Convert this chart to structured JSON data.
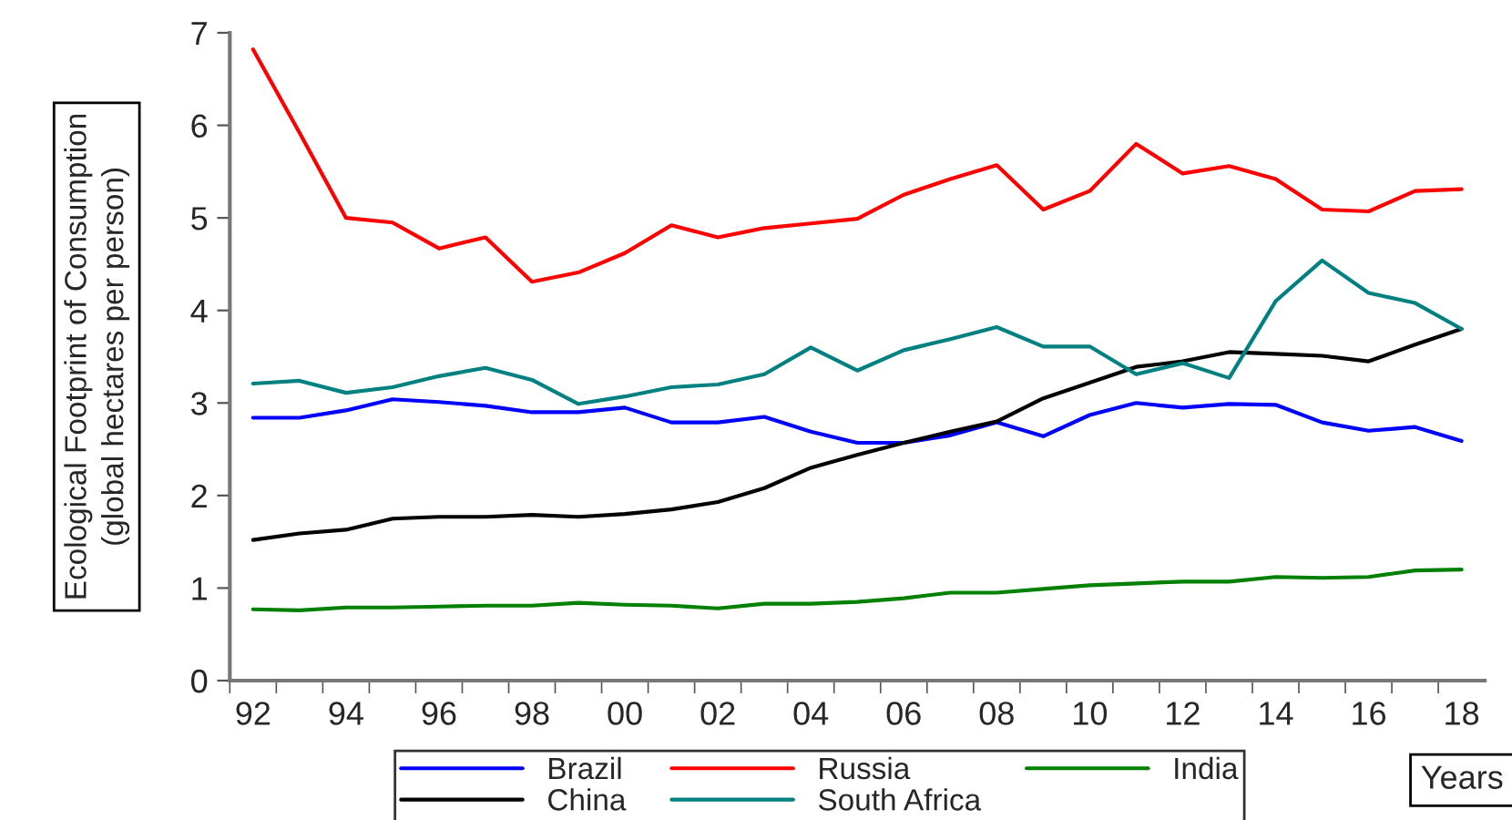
{
  "chart_data": {
    "type": "line",
    "ylabel": "Ecological Footprint of Consumption\n(global hectares per person)",
    "xlabel": "Years",
    "x": [
      1992,
      1993,
      1994,
      1995,
      1996,
      1997,
      1998,
      1999,
      2000,
      2001,
      2002,
      2003,
      2004,
      2005,
      2006,
      2007,
      2008,
      2009,
      2010,
      2011,
      2012,
      2013,
      2014,
      2015,
      2016,
      2017,
      2018
    ],
    "series": [
      {
        "name": "Brazil",
        "color": "#0000ff",
        "values": [
          2.84,
          2.84,
          2.92,
          3.04,
          3.01,
          2.97,
          2.9,
          2.9,
          2.95,
          2.79,
          2.79,
          2.85,
          2.69,
          2.57,
          2.57,
          2.65,
          2.79,
          2.64,
          2.87,
          3.0,
          2.95,
          2.99,
          2.98,
          2.79,
          2.7,
          2.74,
          2.59
        ]
      },
      {
        "name": "Russia",
        "color": "#ff0000",
        "values": [
          6.82,
          5.92,
          5.0,
          4.95,
          4.67,
          4.79,
          4.31,
          4.41,
          4.62,
          4.92,
          4.79,
          4.89,
          4.94,
          4.99,
          5.25,
          5.42,
          5.57,
          5.09,
          5.29,
          5.8,
          5.48,
          5.56,
          5.42,
          5.09,
          5.07,
          5.29,
          5.31
        ]
      },
      {
        "name": "India",
        "color": "#008000",
        "values": [
          0.77,
          0.76,
          0.79,
          0.79,
          0.8,
          0.81,
          0.81,
          0.84,
          0.82,
          0.81,
          0.78,
          0.83,
          0.83,
          0.85,
          0.89,
          0.95,
          0.95,
          0.99,
          1.03,
          1.05,
          1.07,
          1.07,
          1.12,
          1.11,
          1.12,
          1.19,
          1.2
        ]
      },
      {
        "name": "China",
        "color": "#000000",
        "values": [
          1.52,
          1.59,
          1.63,
          1.75,
          1.77,
          1.77,
          1.79,
          1.77,
          1.8,
          1.85,
          1.93,
          2.08,
          2.3,
          2.44,
          2.57,
          2.69,
          2.8,
          3.05,
          3.22,
          3.39,
          3.45,
          3.55,
          3.53,
          3.51,
          3.45,
          3.63,
          3.8
        ]
      },
      {
        "name": "South Africa",
        "color": "#008080",
        "values": [
          3.21,
          3.24,
          3.11,
          3.17,
          3.29,
          3.38,
          3.25,
          2.99,
          3.07,
          3.17,
          3.2,
          3.31,
          3.6,
          3.35,
          3.57,
          3.69,
          3.82,
          3.61,
          3.61,
          3.31,
          3.43,
          3.27,
          4.1,
          4.54,
          4.19,
          4.08,
          3.8
        ]
      }
    ],
    "xlim": [
      1991.5,
      2018.5
    ],
    "xticks": [
      {
        "value": 1992,
        "label": "92"
      },
      {
        "value": 1994,
        "label": "94"
      },
      {
        "value": 1996,
        "label": "96"
      },
      {
        "value": 1998,
        "label": "98"
      },
      {
        "value": 2000,
        "label": "00"
      },
      {
        "value": 2002,
        "label": "02"
      },
      {
        "value": 2004,
        "label": "04"
      },
      {
        "value": 2006,
        "label": "06"
      },
      {
        "value": 2008,
        "label": "08"
      },
      {
        "value": 2010,
        "label": "10"
      },
      {
        "value": 2012,
        "label": "12"
      },
      {
        "value": 2014,
        "label": "14"
      },
      {
        "value": 2016,
        "label": "16"
      },
      {
        "value": 2018,
        "label": "18"
      },
      {
        "value": 1991.5,
        "label": null
      },
      {
        "value": 1992.5,
        "label": null
      },
      {
        "value": 1993.5,
        "label": null
      },
      {
        "value": 1994.5,
        "label": null
      },
      {
        "value": 1995.5,
        "label": null
      },
      {
        "value": 1996.5,
        "label": null
      },
      {
        "value": 1997.5,
        "label": null
      },
      {
        "value": 1998.5,
        "label": null
      },
      {
        "value": 1999.5,
        "label": null
      },
      {
        "value": 2000.5,
        "label": null
      },
      {
        "value": 2001.5,
        "label": null
      },
      {
        "value": 2002.5,
        "label": null
      },
      {
        "value": 2003.5,
        "label": null
      },
      {
        "value": 2004.5,
        "label": null
      },
      {
        "value": 2005.5,
        "label": null
      },
      {
        "value": 2006.5,
        "label": null
      },
      {
        "value": 2007.5,
        "label": null
      },
      {
        "value": 2008.5,
        "label": null
      },
      {
        "value": 2009.5,
        "label": null
      },
      {
        "value": 2010.5,
        "label": null
      },
      {
        "value": 2011.5,
        "label": null
      },
      {
        "value": 2012.5,
        "label": null
      },
      {
        "value": 2013.5,
        "label": null
      },
      {
        "value": 2014.5,
        "label": null
      },
      {
        "value": 2015.5,
        "label": null
      },
      {
        "value": 2016.5,
        "label": null
      },
      {
        "value": 2017.5,
        "label": null
      }
    ],
    "ylim": [
      0,
      7
    ],
    "yticks": [
      0,
      1,
      2,
      3,
      4,
      5,
      6,
      7
    ],
    "legend": "bottom",
    "grid": false,
    "marker": "none",
    "line_style": "solid"
  }
}
